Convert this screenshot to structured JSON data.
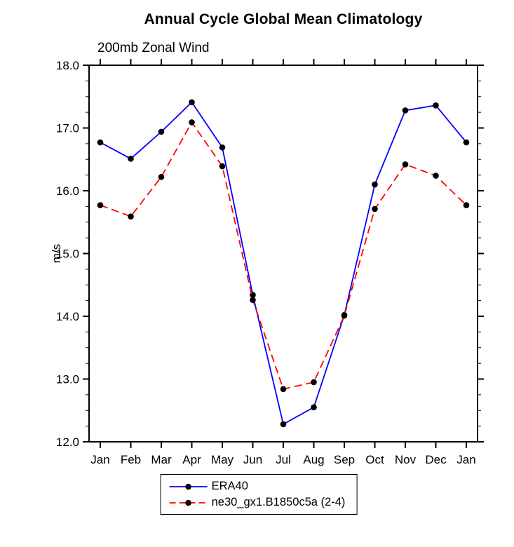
{
  "chart_data": {
    "type": "line",
    "title": "Annual Cycle Global Mean Climatology",
    "subtitle": "200mb Zonal Wind",
    "xlabel": "",
    "ylabel": "m/s",
    "ylim": [
      12.0,
      18.0
    ],
    "ytick_step": 1.0,
    "yminor_step": 0.25,
    "ytick_labels": [
      "12.0",
      "13.0",
      "14.0",
      "15.0",
      "16.0",
      "17.0",
      "18.0"
    ],
    "categories": [
      "Jan",
      "Feb",
      "Mar",
      "Apr",
      "May",
      "Jun",
      "Jul",
      "Aug",
      "Sep",
      "Oct",
      "Nov",
      "Dec",
      "Jan"
    ],
    "grid": false,
    "legend_position": "bottom",
    "marker": {
      "shape": "circle",
      "color": "#000000"
    },
    "series": [
      {
        "name": "ERA40",
        "color": "#0000ff",
        "line_style": "solid",
        "values": [
          16.77,
          16.51,
          16.94,
          17.41,
          16.69,
          14.34,
          12.28,
          12.55,
          14.02,
          16.1,
          17.28,
          17.36,
          16.77
        ]
      },
      {
        "name": "ne30_gx1.B1850c5a (2-4)",
        "color": "#ff0000",
        "line_style": "dashed",
        "values": [
          15.77,
          15.59,
          16.22,
          17.09,
          16.39,
          14.26,
          12.84,
          12.95,
          14.01,
          15.71,
          16.42,
          16.24,
          15.77
        ]
      }
    ]
  }
}
